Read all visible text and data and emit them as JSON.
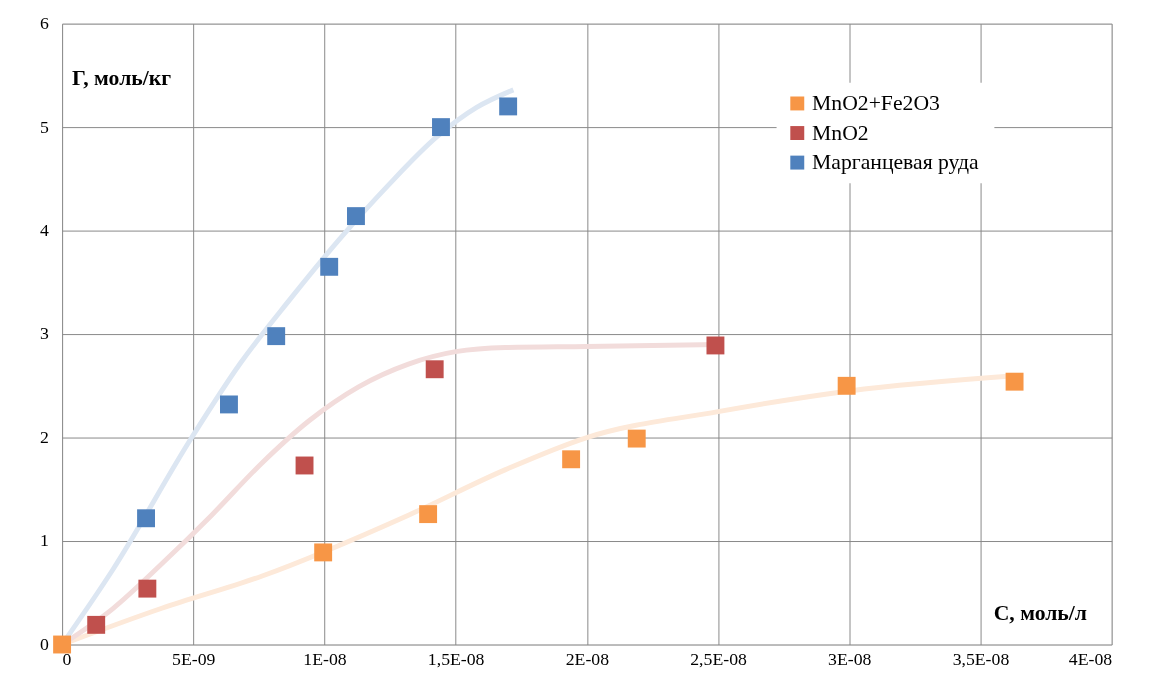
{
  "chart_data": {
    "type": "scatter",
    "xlabel": "С, моль/л",
    "ylabel": "Г, моль/кг",
    "xlim": [
      0,
      4e-08
    ],
    "ylim": [
      0,
      6
    ],
    "xticks": [
      0,
      {
        "value": 5e-09,
        "label": "5E-09"
      },
      {
        "value": 1e-08,
        "label": "1E-08"
      },
      {
        "value": 1.5e-08,
        "label": "1,5E-08"
      },
      {
        "value": 2e-08,
        "label": "2E-08"
      },
      {
        "value": 2.5e-08,
        "label": "2,5E-08"
      },
      {
        "value": 3e-08,
        "label": "3E-08"
      },
      {
        "value": 3.5e-08,
        "label": "3,5E-08"
      },
      {
        "value": 4e-08,
        "label": "4E-08"
      }
    ],
    "yticks": [
      0,
      1,
      2,
      3,
      4,
      5,
      6
    ],
    "grid": true,
    "legend": "top right",
    "marker": "square",
    "series": [
      {
        "type": "line",
        "marker": "none",
        "line_style": "solid",
        "color": "#fde9d9",
        "x": [
          0,
          3.8e-09,
          7.6e-09,
          1.32e-08,
          1.69e-08,
          2e-08,
          2.5e-08,
          3e-08,
          3.65e-08
        ],
        "values": [
          0,
          0.35,
          0.66,
          1.25,
          1.69,
          2.0,
          2.25,
          2.45,
          2.6
        ]
      },
      {
        "type": "line",
        "marker": "none",
        "line_style": "solid",
        "color": "#f2dcdb",
        "x": [
          0,
          1.95e-09,
          3.8e-09,
          5.7e-09,
          7.6e-09,
          9.4e-09,
          1.13e-08,
          1.32e-08,
          1.5e-08,
          1.69e-08,
          2e-08,
          2.5e-08
        ],
        "values": [
          0,
          0.35,
          0.78,
          1.25,
          1.75,
          2.16,
          2.49,
          2.71,
          2.83,
          2.87,
          2.88,
          2.9
        ]
      },
      {
        "type": "line",
        "marker": "none",
        "line_style": "solid",
        "color": "#dce6f2",
        "x": [
          0,
          1.95e-09,
          4.94e-09,
          6.8e-09,
          8.7e-09,
          1.055e-08,
          1.24e-08,
          1.43e-08,
          1.58e-08,
          1.72e-08
        ],
        "values": [
          0,
          0.73,
          2.0,
          2.72,
          3.34,
          3.91,
          4.43,
          4.91,
          5.19,
          5.36
        ]
      },
      {
        "name": "MnO2+Fe2O3",
        "color": "#f79646",
        "x": [
          0,
          9.95e-09,
          1.395e-08,
          1.94e-08,
          2.19e-08,
          2.99e-08,
          3.63e-08
        ],
        "values": [
          0,
          0.89,
          1.26,
          1.79,
          1.99,
          2.5,
          2.54
        ]
      },
      {
        "name": "MnO2",
        "color": "#c0504d",
        "x": [
          1.3e-09,
          3.25e-09,
          9.24e-09,
          1.42e-08,
          2.49e-08
        ],
        "values": [
          0.19,
          0.54,
          1.73,
          2.66,
          2.89
        ]
      },
      {
        "name": "Марганцевая  руда",
        "color": "#4f81bd",
        "x": [
          3.2e-09,
          6.36e-09,
          8.16e-09,
          1.018e-08,
          1.12e-08,
          1.444e-08,
          1.7e-08
        ],
        "values": [
          1.22,
          2.32,
          2.98,
          3.65,
          4.14,
          5.0,
          5.2
        ]
      }
    ]
  }
}
